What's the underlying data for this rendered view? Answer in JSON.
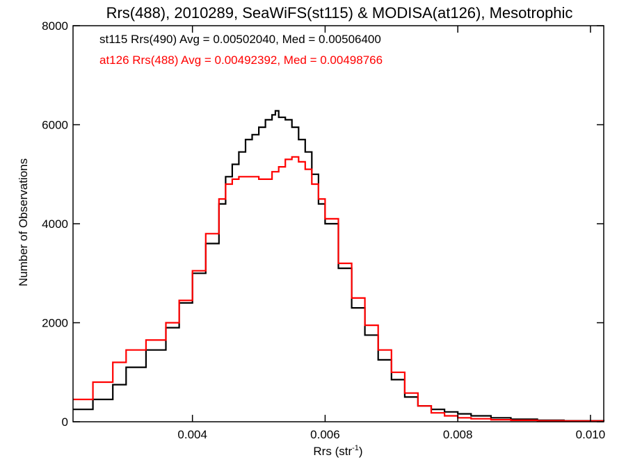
{
  "chart_data": {
    "type": "line",
    "title": "Rrs(488), 2010289, SeaWiFS(st115) & MODISA(at126), Mesotrophic",
    "xlabel": "Rrs (str",
    "xlabel_sup": "-1",
    "xlabel_close": ")",
    "ylabel": "Number of Observations",
    "xlim": [
      0.0022,
      0.0102
    ],
    "ylim": [
      0,
      8000
    ],
    "xticks": [
      0.004,
      0.006,
      0.008,
      0.01
    ],
    "xtick_labels": [
      "0.004",
      "0.006",
      "0.008",
      "0.010"
    ],
    "yticks": [
      0,
      2000,
      4000,
      6000,
      8000
    ],
    "ytick_labels": [
      "0",
      "2000",
      "4000",
      "6000",
      "8000"
    ],
    "grid": false,
    "annotations": [
      {
        "text": "st115 Rrs(490) Avg = 0.00502040, Med = 0.00506400",
        "color": "#000000"
      },
      {
        "text": "at126 Rrs(488) Avg = 0.00492392, Med = 0.00498766",
        "color": "#ff0000"
      }
    ],
    "series": [
      {
        "color": "#000000",
        "x": [
          0.0022,
          0.0025,
          0.0028,
          0.003,
          0.0033,
          0.0036,
          0.0038,
          0.004,
          0.0042,
          0.0044,
          0.0045,
          0.0046,
          0.0047,
          0.0048,
          0.0049,
          0.005,
          0.0051,
          0.0052,
          0.00525,
          0.0053,
          0.0054,
          0.0055,
          0.0056,
          0.0057,
          0.0058,
          0.0059,
          0.006,
          0.0062,
          0.0064,
          0.0066,
          0.0068,
          0.007,
          0.0072,
          0.0074,
          0.0076,
          0.0078,
          0.008,
          0.0082,
          0.0085,
          0.0088,
          0.0092,
          0.0096,
          0.0102
        ],
        "y": [
          250,
          450,
          750,
          1100,
          1450,
          1900,
          2400,
          3000,
          3600,
          4400,
          4950,
          5200,
          5450,
          5700,
          5800,
          5950,
          6100,
          6200,
          6280,
          6150,
          6100,
          5950,
          5700,
          5450,
          5000,
          4400,
          4000,
          3100,
          2300,
          1750,
          1250,
          850,
          500,
          320,
          250,
          200,
          160,
          120,
          80,
          50,
          30,
          20,
          10
        ]
      },
      {
        "color": "#ff0000",
        "x": [
          0.0022,
          0.0025,
          0.0028,
          0.003,
          0.0033,
          0.0036,
          0.0038,
          0.004,
          0.0042,
          0.0044,
          0.0045,
          0.0046,
          0.0047,
          0.0048,
          0.0049,
          0.005,
          0.0051,
          0.0052,
          0.0053,
          0.0054,
          0.0055,
          0.0056,
          0.0057,
          0.0058,
          0.0059,
          0.006,
          0.0062,
          0.0064,
          0.0066,
          0.0068,
          0.007,
          0.0072,
          0.0074,
          0.0076,
          0.0078,
          0.008,
          0.0082,
          0.0085,
          0.0088,
          0.0092,
          0.0096,
          0.0102
        ],
        "y": [
          450,
          800,
          1200,
          1450,
          1650,
          2000,
          2450,
          3050,
          3800,
          4500,
          4800,
          4900,
          4950,
          4950,
          4950,
          4900,
          4900,
          5050,
          5150,
          5300,
          5350,
          5250,
          5100,
          4800,
          4500,
          4100,
          3200,
          2500,
          1950,
          1450,
          1000,
          580,
          320,
          180,
          120,
          80,
          60,
          40,
          30,
          20,
          15,
          10
        ]
      }
    ]
  }
}
